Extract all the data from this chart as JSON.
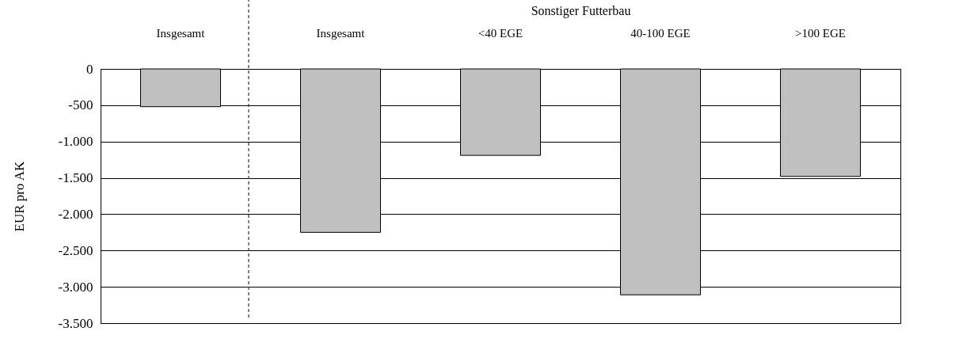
{
  "chart_data": {
    "type": "bar",
    "ylabel": "EUR pro AK",
    "categories": [
      "Insgesamt",
      "Insgesamt",
      "<40 EGE",
      "40-100 EGE",
      ">100 EGE"
    ],
    "values": [
      -520,
      -2250,
      -1190,
      -3110,
      -1480
    ],
    "color": "#c0c0c0",
    "ylim": [
      -3500,
      0
    ],
    "yticks": [
      0,
      -500,
      {
        "value": -1000,
        "label": "-1.000"
      },
      {
        "value": -1500,
        "label": "-1.500"
      },
      {
        "value": -2000,
        "label": "-2.000"
      },
      {
        "value": -2500,
        "label": "-2.500"
      },
      {
        "value": -3000,
        "label": "-3.000"
      },
      {
        "value": -3500,
        "label": "-3.500"
      }
    ],
    "grid": "y",
    "annotations": [
      "Sonstiger Futterbau"
    ]
  }
}
